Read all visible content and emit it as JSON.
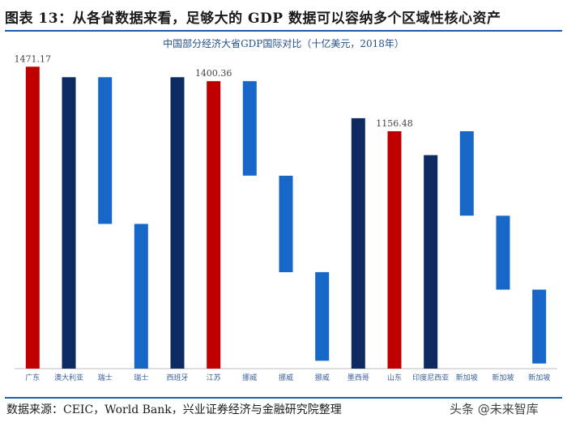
{
  "figure": {
    "title": "图表 13：从各省数据来看，足够大的 GDP 数据可以容纳多个区域性核心资产",
    "source": "数据来源：CEIC，World Bank，兴业证券经济与金融研究院整理",
    "watermark": "头条 @未来智库"
  },
  "colors": {
    "red": "#c00000",
    "navy": "#0d2a63",
    "blue": "#1667c7",
    "rule": "#1f5fa8"
  },
  "chart_data": {
    "type": "bar",
    "subtype": "waterfall",
    "title": "中国部分经济大省GDP国际对比（十亿美元，2018年）",
    "xlabel": "",
    "ylabel": "",
    "ylim": [
      0,
      1500
    ],
    "grid": false,
    "bars": [
      {
        "category": "广东",
        "bottom": 0,
        "top": 1471.17,
        "color": "red",
        "label": "1471.17"
      },
      {
        "category": "澳大利亚",
        "bottom": 0,
        "top": 1420
      },
      {
        "category": "瑞士",
        "bottom": 705,
        "top": 1420
      },
      {
        "category": "瑞士",
        "bottom": 0,
        "top": 705,
        "color": "blue"
      },
      {
        "category": "西班牙",
        "bottom": 0,
        "top": 1420
      },
      {
        "category": "江苏",
        "bottom": 0,
        "top": 1400.36,
        "color": "red",
        "label": "1400.36"
      },
      {
        "category": "挪威",
        "bottom": 940,
        "top": 1400.36
      },
      {
        "category": "挪威",
        "bottom": 470,
        "top": 940
      },
      {
        "category": "挪威",
        "bottom": 38,
        "top": 470
      },
      {
        "category": "墨西哥",
        "bottom": 0,
        "top": 1220
      },
      {
        "category": "山东",
        "bottom": 0,
        "top": 1156.48,
        "color": "red",
        "label": "1156.48"
      },
      {
        "category": "印度尼西亚",
        "bottom": 0,
        "top": 1040
      },
      {
        "category": "新加坡",
        "bottom": 745,
        "top": 1156.48
      },
      {
        "category": "新加坡",
        "bottom": 385,
        "top": 745
      },
      {
        "category": "新加坡",
        "bottom": 25,
        "top": 385
      }
    ]
  }
}
